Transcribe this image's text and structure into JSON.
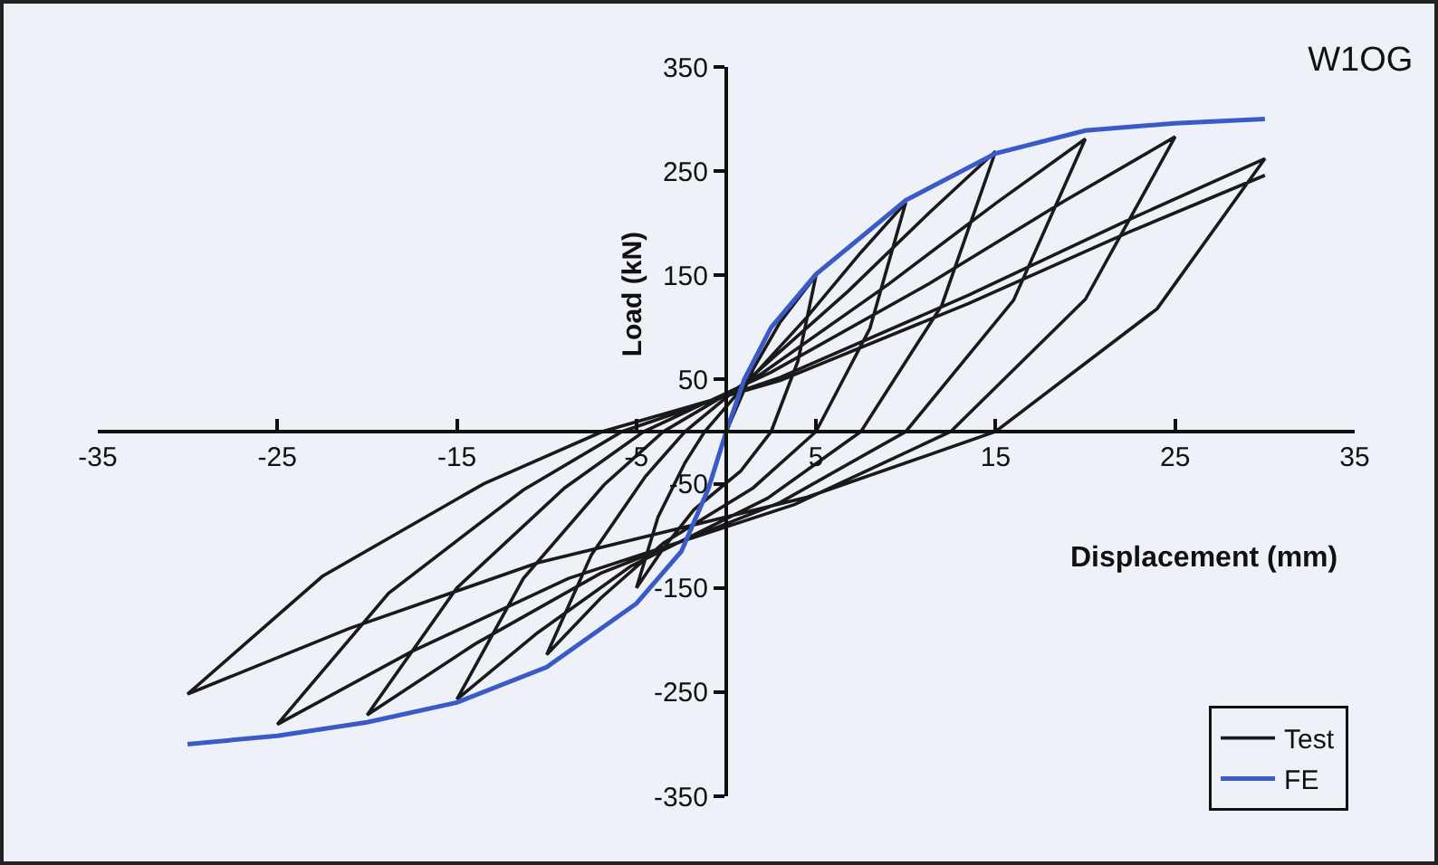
{
  "chart_data": {
    "type": "line",
    "title": "W1OG",
    "xlabel": "Displacement (mm)",
    "ylabel": "Load (kN)",
    "xlim": [
      -35,
      35
    ],
    "xticks": [
      -35,
      -25,
      -15,
      -5,
      5,
      15,
      25,
      35
    ],
    "ylim": [
      -350,
      350
    ],
    "yticks": [
      -350,
      -250,
      -150,
      -50,
      50,
      150,
      250,
      350
    ],
    "legend": "bottom right",
    "series": [
      {
        "name": "Test",
        "color": "#1a1a1a",
        "x": [
          0,
          1.5,
          3,
          5,
          4,
          2.5,
          0.8,
          -1.8,
          -3.5,
          -5,
          -3.8,
          -2.3,
          -1.2,
          1,
          4.5,
          7.5,
          10,
          8,
          5,
          1.5,
          -3.5,
          -7,
          -10,
          -7.5,
          -4.5,
          -2.3,
          1.5,
          6.8,
          11.3,
          15,
          12,
          7.5,
          2.3,
          -5.3,
          -10.5,
          -15,
          -11.3,
          -6.8,
          -3.5,
          2,
          9,
          15,
          20,
          16,
          10,
          3,
          -7,
          -14,
          -20,
          -15,
          -9,
          -4.6,
          2.5,
          11.3,
          18.8,
          25,
          20,
          12.5,
          3.8,
          -8.8,
          -17.5,
          -25,
          -18.8,
          -11.3,
          -5.8,
          3,
          13.5,
          22.5,
          30,
          24,
          15,
          4.5,
          -10.5,
          -21,
          -30,
          -22.5,
          -13.5,
          -6.9,
          3,
          13.5,
          22.5,
          30
        ],
        "values": [
          0,
          60,
          105,
          150,
          68,
          0,
          -38,
          -75,
          -112,
          -150,
          -82,
          -30,
          0,
          44,
          110,
          172,
          220,
          99,
          0,
          -54,
          -107,
          -160,
          -214,
          -118,
          -43,
          0,
          54,
          135,
          210,
          269,
          121,
          0,
          -64,
          -129,
          -193,
          -257,
          -141,
          -51,
          0,
          56,
          141,
          219,
          281,
          126,
          0,
          -68,
          -136,
          -204,
          -272,
          -150,
          -54,
          0,
          57,
          142,
          221,
          283,
          127,
          0,
          -70,
          -141,
          -211,
          -281,
          -155,
          -56,
          0,
          52,
          131,
          204,
          262,
          118,
          0,
          -63,
          -126,
          -189,
          -252,
          -139,
          -50,
          0,
          49,
          123,
          192,
          246
        ]
      },
      {
        "name": "FE",
        "color": "#3a5bc7",
        "x": [
          -30,
          -25,
          -20,
          -15,
          -10,
          -5,
          -2.5,
          -1,
          0,
          1,
          2.5,
          5,
          10,
          15,
          20,
          25,
          30
        ],
        "values": [
          -300,
          -292,
          -279,
          -260,
          -226,
          -165,
          -115,
          -55,
          0,
          50,
          100,
          151,
          222,
          267,
          289,
          296,
          300
        ]
      }
    ]
  }
}
